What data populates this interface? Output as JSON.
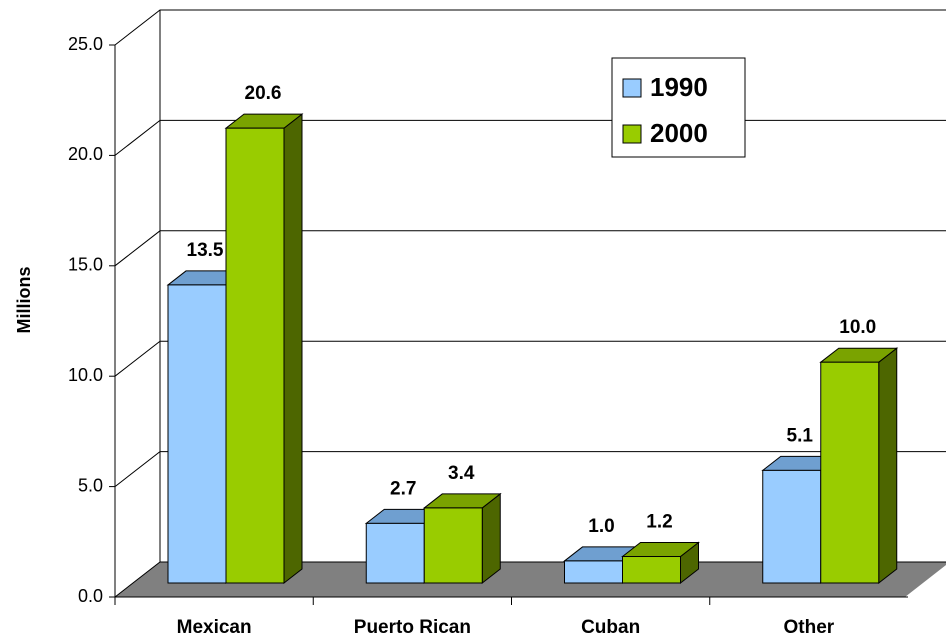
{
  "chart_data": {
    "type": "bar3d",
    "y_label": "Millions",
    "categories": [
      "Mexican",
      "Puerto Rican",
      "Cuban",
      "Other"
    ],
    "series": [
      {
        "name": "1990",
        "color": "#99ccff",
        "values": [
          13.5,
          2.7,
          1.0,
          5.1
        ],
        "value_labels": [
          "13.5",
          "2.7",
          "1.0",
          "5.1"
        ]
      },
      {
        "name": "2000",
        "color": "#99cc00",
        "values": [
          20.6,
          3.4,
          1.2,
          10.0
        ],
        "value_labels": [
          "20.6",
          "3.4",
          "1.2",
          "10.0"
        ]
      }
    ],
    "ylim": [
      0,
      25
    ],
    "yticks": [
      {
        "value": 0,
        "label": "0.0"
      },
      {
        "value": 5,
        "label": "5.0"
      },
      {
        "value": 10,
        "label": "10.0"
      },
      {
        "value": 15,
        "label": "15.0"
      },
      {
        "value": 20,
        "label": "20.0"
      },
      {
        "value": 25,
        "label": "25.0"
      }
    ],
    "grid": true,
    "legend": "top-right"
  }
}
